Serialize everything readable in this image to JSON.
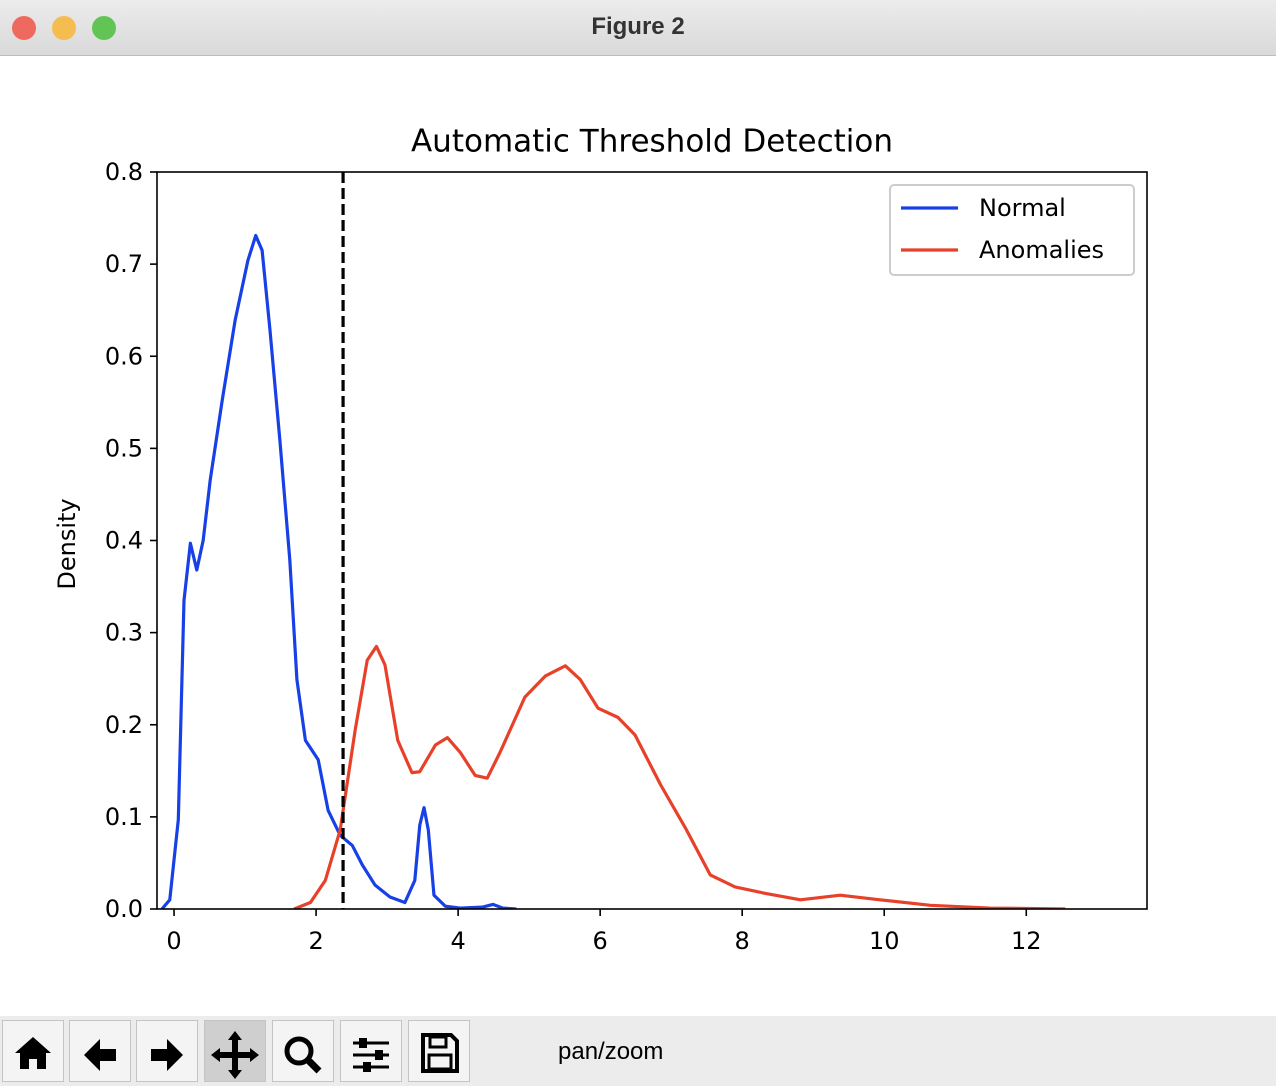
{
  "window": {
    "title": "Figure 2",
    "status": "pan/zoom"
  },
  "chart_data": {
    "type": "line",
    "title": "Automatic Threshold Detection",
    "y_label": "Density",
    "xlim": [
      -0.24,
      13.7
    ],
    "ylim": [
      0,
      0.8
    ],
    "xticks": [
      0,
      2,
      4,
      6,
      8,
      10,
      12
    ],
    "yticks": [
      {
        "value": 0,
        "label": "0.0"
      },
      0.1,
      0.2,
      0.3,
      0.4,
      0.5,
      0.6,
      0.7,
      0.8
    ],
    "vline": 2.38,
    "vline_color": "#000000",
    "legend": "upper right",
    "grid": false,
    "series": [
      {
        "name": "Normal",
        "color": "#1740e6",
        "x": [
          -0.17,
          -0.06,
          0.06,
          0.14,
          0.23,
          0.32,
          0.41,
          0.51,
          0.68,
          0.86,
          1.04,
          1.15,
          1.24,
          1.35,
          1.49,
          1.63,
          1.73,
          1.85,
          2.03,
          2.17,
          2.34,
          2.51,
          2.65,
          2.83,
          3.04,
          3.25,
          3.39,
          3.46,
          3.52,
          3.58,
          3.66,
          3.82,
          4.03,
          4.34,
          4.49,
          4.63,
          4.82
        ],
        "values": [
          0,
          0.01,
          0.097,
          0.335,
          0.397,
          0.368,
          0.4,
          0.466,
          0.553,
          0.639,
          0.704,
          0.731,
          0.715,
          0.629,
          0.509,
          0.379,
          0.249,
          0.183,
          0.162,
          0.107,
          0.08,
          0.069,
          0.048,
          0.026,
          0.013,
          0.007,
          0.031,
          0.091,
          0.11,
          0.086,
          0.015,
          0.003,
          0.001,
          0.002,
          0.005,
          0.001,
          0
        ]
      },
      {
        "name": "Anomalies",
        "color": "#e8412a",
        "x": [
          1.69,
          1.92,
          2.13,
          2.34,
          2.55,
          2.72,
          2.85,
          2.97,
          3.15,
          3.35,
          3.46,
          3.68,
          3.85,
          4.03,
          4.24,
          4.41,
          4.59,
          4.94,
          5.23,
          5.51,
          5.72,
          5.97,
          6.25,
          6.49,
          6.85,
          7.2,
          7.55,
          7.9,
          8.32,
          8.82,
          9.38,
          9.94,
          10.65,
          11.49,
          12.55
        ],
        "values": [
          0,
          0.007,
          0.031,
          0.086,
          0.194,
          0.27,
          0.285,
          0.265,
          0.183,
          0.148,
          0.149,
          0.178,
          0.186,
          0.17,
          0.145,
          0.142,
          0.17,
          0.23,
          0.253,
          0.264,
          0.249,
          0.218,
          0.208,
          0.189,
          0.135,
          0.088,
          0.037,
          0.024,
          0.017,
          0.01,
          0.015,
          0.01,
          0.004,
          0.001,
          0
        ]
      }
    ]
  }
}
